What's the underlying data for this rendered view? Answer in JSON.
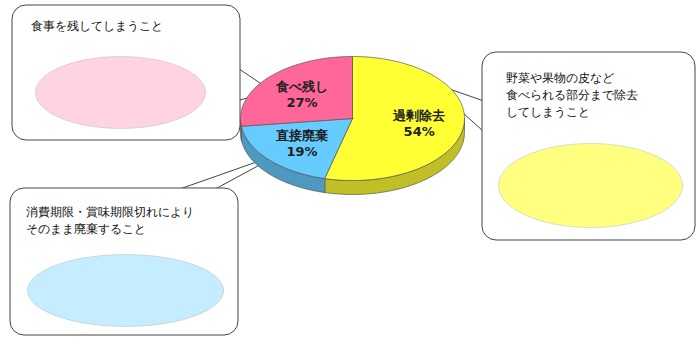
{
  "chart_data": {
    "type": "pie",
    "categories": [
      "過剰除去",
      "直接廃棄",
      "食べ残し"
    ],
    "values": [
      54,
      19,
      27
    ],
    "value_labels": [
      "54%",
      "19%",
      "27%"
    ],
    "colors": [
      "#ffff33",
      "#66ccff",
      "#ff6699"
    ],
    "data_labels": true,
    "annotations": [
      "野菜や果物の皮など\n食べられる部分まで除去\nしてしまうこと",
      "消費期限・賞味期限切れにより\nそのまま廃棄すること",
      "食事を残してしまうこと"
    ]
  }
}
